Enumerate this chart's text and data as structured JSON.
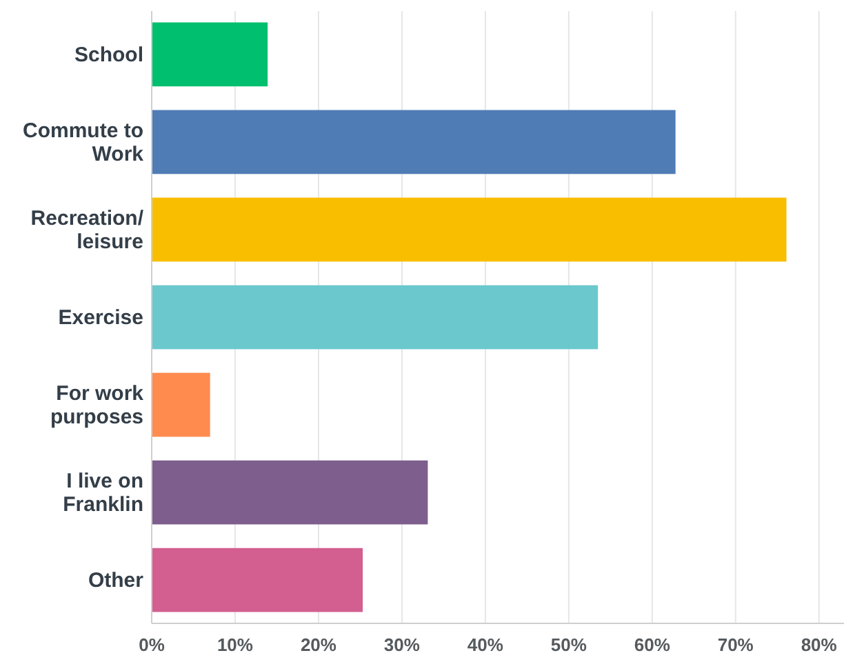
{
  "chart_data": {
    "type": "bar",
    "orientation": "horizontal",
    "categories": [
      "School",
      "Commute to Work",
      "Recreation/leisure",
      "Exercise",
      "For work purposes",
      "I live on Franklin",
      "Other"
    ],
    "values": [
      13.9,
      62.8,
      76.1,
      53.5,
      7.0,
      33.1,
      25.3
    ],
    "colors": [
      "#00bf6f",
      "#507cb6",
      "#f9be00",
      "#6bc8cd",
      "#ff8b4f",
      "#7d5e8c",
      "#d25f90"
    ],
    "xlim": [
      0,
      83
    ],
    "xticks": [
      {
        "value": 0,
        "label": "0%"
      },
      {
        "value": 10,
        "label": "10%"
      },
      {
        "value": 20,
        "label": "20%"
      },
      {
        "value": 30,
        "label": "30%"
      },
      {
        "value": 40,
        "label": "40%"
      },
      {
        "value": 50,
        "label": "50%"
      },
      {
        "value": 60,
        "label": "60%"
      },
      {
        "value": 70,
        "label": "70%"
      },
      {
        "value": 80,
        "label": "80%"
      }
    ],
    "grid": "x"
  }
}
